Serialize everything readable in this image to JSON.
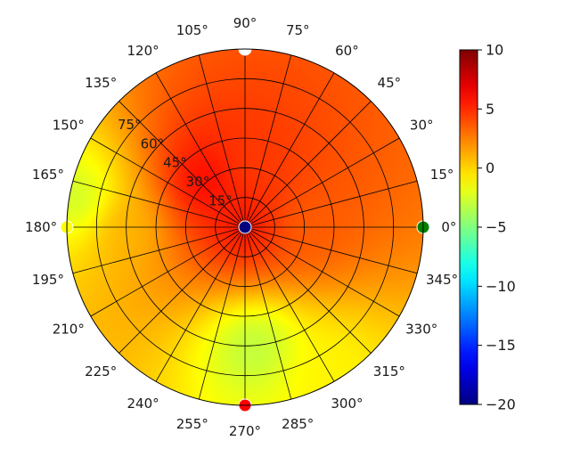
{
  "chart_data": {
    "type": "heatmap",
    "projection": "polar",
    "title": "",
    "angular_ticks": [
      "0°",
      "15°",
      "30°",
      "45°",
      "60°",
      "75°",
      "90°",
      "105°",
      "120°",
      "135°",
      "150°",
      "165°",
      "180°",
      "195°",
      "210°",
      "225°",
      "240°",
      "255°",
      "270°",
      "285°",
      "300°",
      "315°",
      "330°",
      "345°"
    ],
    "radial_ticks": [
      "15°",
      "30°",
      "45°",
      "60°",
      "75°"
    ],
    "radial_range": [
      0,
      90
    ],
    "radial_grid_values": [
      15,
      30,
      45,
      60,
      75
    ],
    "radial_tick_angle_deg": 140,
    "angular_grid_step_deg": 15,
    "grid": true,
    "colormap": "jet",
    "colorbar": {
      "range": [
        -20,
        10
      ],
      "ticks": [
        "10",
        "5",
        "0",
        "−5",
        "−10",
        "−15",
        "−20"
      ]
    },
    "field_min_samples": [
      {
        "theta_deg": 0,
        "r_deg": 0,
        "value": 6
      },
      {
        "theta_deg": 130,
        "r_deg": 30,
        "value": 6.5
      },
      {
        "theta_deg": 90,
        "r_deg": 30,
        "value": 4.5
      },
      {
        "theta_deg": 0,
        "r_deg": 30,
        "value": 3.5
      },
      {
        "theta_deg": 180,
        "r_deg": 60,
        "value": 1
      },
      {
        "theta_deg": 275,
        "r_deg": 60,
        "value": -3.5
      },
      {
        "theta_deg": 170,
        "r_deg": 85,
        "value": -3
      },
      {
        "theta_deg": 300,
        "r_deg": 85,
        "value": -1
      }
    ],
    "markers": [
      {
        "theta_deg": 0,
        "r_deg": 90,
        "color": "#008000"
      },
      {
        "theta_deg": 90,
        "r_deg": 90,
        "color": "#ffffff"
      },
      {
        "theta_deg": 180,
        "r_deg": 90,
        "color": "#ffff00"
      },
      {
        "theta_deg": 270,
        "r_deg": 90,
        "color": "#ff0000"
      },
      {
        "theta_deg": 0,
        "r_deg": 0,
        "color": "#000080"
      }
    ]
  }
}
